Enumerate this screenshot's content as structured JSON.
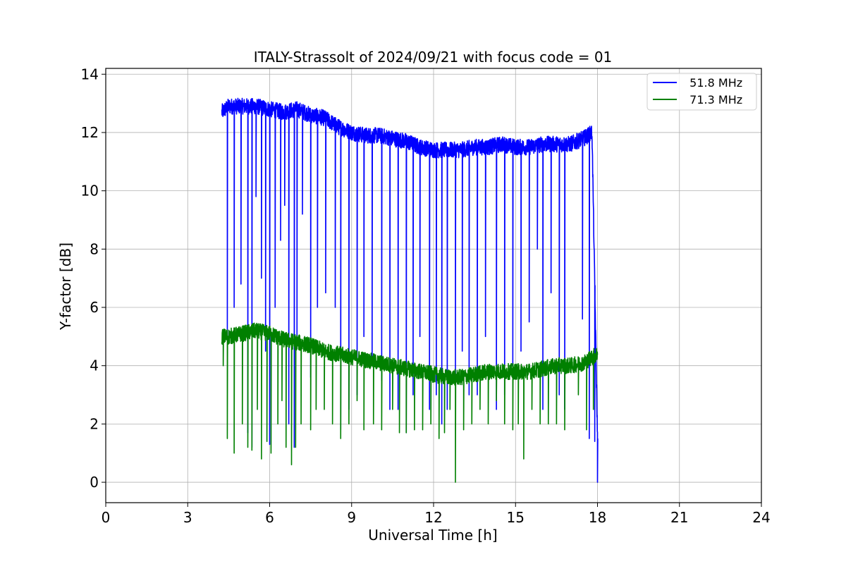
{
  "chart_data": {
    "type": "line",
    "title": "ITALY-Strassolt of 2024/09/21 with focus code = 01",
    "xlabel": "Universal Time [h]",
    "ylabel": "Y-factor [dB]",
    "xlim": [
      0,
      24
    ],
    "ylim": [
      -0.7,
      14.2
    ],
    "xticks": [
      0,
      3,
      6,
      9,
      12,
      15,
      18,
      21,
      24
    ],
    "xtick_labels": [
      "0",
      "3",
      "6",
      "9",
      "12",
      "15",
      "18",
      "21",
      "24"
    ],
    "yticks": [
      0,
      2,
      4,
      6,
      8,
      10,
      12,
      14
    ],
    "ytick_labels": [
      "0",
      "2",
      "4",
      "6",
      "8",
      "10",
      "12",
      "14"
    ],
    "grid": true,
    "legend_position": "top-right",
    "series": [
      {
        "name": "  51.8 MHz",
        "color": "#0000ff",
        "x": [
          4.25,
          4.5,
          5.0,
          5.5,
          6.0,
          6.5,
          7.0,
          7.5,
          8.0,
          8.5,
          9.0,
          9.5,
          10.0,
          10.5,
          11.0,
          11.5,
          12.0,
          12.5,
          13.0,
          13.5,
          14.0,
          14.5,
          15.0,
          15.5,
          16.0,
          16.5,
          17.0,
          17.5,
          17.8,
          18.0
        ],
        "y": [
          12.7,
          12.9,
          12.9,
          12.9,
          12.8,
          12.7,
          12.8,
          12.6,
          12.5,
          12.2,
          12.0,
          11.9,
          11.9,
          11.8,
          11.7,
          11.5,
          11.4,
          11.4,
          11.4,
          11.5,
          11.5,
          11.6,
          11.5,
          11.5,
          11.6,
          11.6,
          11.6,
          11.8,
          12.0,
          1.5
        ],
        "dips": [
          {
            "x": 4.45,
            "y": 5.0
          },
          {
            "x": 4.7,
            "y": 6.0
          },
          {
            "x": 4.95,
            "y": 6.8
          },
          {
            "x": 5.2,
            "y": 1.7
          },
          {
            "x": 5.35,
            "y": 1.2
          },
          {
            "x": 5.5,
            "y": 9.8
          },
          {
            "x": 5.7,
            "y": 7.0
          },
          {
            "x": 5.85,
            "y": 4.5
          },
          {
            "x": 6.0,
            "y": 1.3
          },
          {
            "x": 6.2,
            "y": 6.0
          },
          {
            "x": 6.4,
            "y": 8.3
          },
          {
            "x": 6.55,
            "y": 9.5
          },
          {
            "x": 6.7,
            "y": 2.0
          },
          {
            "x": 6.9,
            "y": 1.2
          },
          {
            "x": 7.0,
            "y": 5.0
          },
          {
            "x": 7.2,
            "y": 9.2
          },
          {
            "x": 7.5,
            "y": 3.6
          },
          {
            "x": 7.75,
            "y": 6.0
          },
          {
            "x": 8.05,
            "y": 6.5
          },
          {
            "x": 8.4,
            "y": 6.0
          },
          {
            "x": 8.6,
            "y": 1.8
          },
          {
            "x": 8.9,
            "y": 2.5
          },
          {
            "x": 9.2,
            "y": 3.0
          },
          {
            "x": 9.45,
            "y": 5.0
          },
          {
            "x": 9.75,
            "y": 4.0
          },
          {
            "x": 10.1,
            "y": 3.5
          },
          {
            "x": 10.4,
            "y": 2.5
          },
          {
            "x": 10.7,
            "y": 2.5
          },
          {
            "x": 11.0,
            "y": 1.7
          },
          {
            "x": 11.25,
            "y": 3.0
          },
          {
            "x": 11.5,
            "y": 5.0
          },
          {
            "x": 11.85,
            "y": 2.5
          },
          {
            "x": 12.1,
            "y": 3.0
          },
          {
            "x": 12.3,
            "y": 2.0
          },
          {
            "x": 12.5,
            "y": 2.5
          },
          {
            "x": 12.8,
            "y": 3.5
          },
          {
            "x": 13.05,
            "y": 4.5
          },
          {
            "x": 13.3,
            "y": 3.0
          },
          {
            "x": 13.6,
            "y": 3.0
          },
          {
            "x": 13.9,
            "y": 5.0
          },
          {
            "x": 14.3,
            "y": 2.5
          },
          {
            "x": 14.6,
            "y": 3.0
          },
          {
            "x": 14.9,
            "y": 4.0
          },
          {
            "x": 15.2,
            "y": 4.5
          },
          {
            "x": 15.5,
            "y": 5.5
          },
          {
            "x": 15.8,
            "y": 8.0
          },
          {
            "x": 16.0,
            "y": 2.5
          },
          {
            "x": 16.3,
            "y": 6.5
          },
          {
            "x": 16.6,
            "y": 3.0
          },
          {
            "x": 16.8,
            "y": 2.5
          },
          {
            "x": 17.45,
            "y": 5.6
          },
          {
            "x": 17.7,
            "y": 1.5
          },
          {
            "x": 17.9,
            "y": 1.4
          },
          {
            "x": 18.0,
            "y": 0.0
          }
        ]
      },
      {
        "name": "  71.3 MHz",
        "color": "#008000",
        "x": [
          4.25,
          4.5,
          5.0,
          5.5,
          6.0,
          6.5,
          7.0,
          7.5,
          8.0,
          8.5,
          9.0,
          9.5,
          10.0,
          10.5,
          11.0,
          11.5,
          12.0,
          12.5,
          13.0,
          13.5,
          14.0,
          14.5,
          15.0,
          15.5,
          16.0,
          16.5,
          17.0,
          17.5,
          17.8,
          18.0
        ],
        "y": [
          5.0,
          5.0,
          5.1,
          5.2,
          5.1,
          4.9,
          4.8,
          4.7,
          4.5,
          4.4,
          4.3,
          4.2,
          4.1,
          4.0,
          3.9,
          3.8,
          3.7,
          3.6,
          3.6,
          3.7,
          3.8,
          3.8,
          3.8,
          3.8,
          3.9,
          4.0,
          4.0,
          4.1,
          4.3,
          4.4
        ],
        "dips": [
          {
            "x": 4.3,
            "y": 4.0
          },
          {
            "x": 4.45,
            "y": 1.5
          },
          {
            "x": 4.7,
            "y": 1.0
          },
          {
            "x": 5.0,
            "y": 2.0
          },
          {
            "x": 5.2,
            "y": 1.2
          },
          {
            "x": 5.35,
            "y": 1.1
          },
          {
            "x": 5.55,
            "y": 2.5
          },
          {
            "x": 5.7,
            "y": 0.8
          },
          {
            "x": 5.9,
            "y": 1.4
          },
          {
            "x": 6.05,
            "y": 1.0
          },
          {
            "x": 6.3,
            "y": 2.0
          },
          {
            "x": 6.45,
            "y": 2.8
          },
          {
            "x": 6.6,
            "y": 1.2
          },
          {
            "x": 6.8,
            "y": 0.6
          },
          {
            "x": 6.95,
            "y": 1.2
          },
          {
            "x": 7.15,
            "y": 2.0
          },
          {
            "x": 7.5,
            "y": 1.8
          },
          {
            "x": 7.7,
            "y": 2.5
          },
          {
            "x": 8.0,
            "y": 2.5
          },
          {
            "x": 8.3,
            "y": 2.0
          },
          {
            "x": 8.6,
            "y": 1.5
          },
          {
            "x": 8.9,
            "y": 2.0
          },
          {
            "x": 9.2,
            "y": 2.8
          },
          {
            "x": 9.45,
            "y": 1.8
          },
          {
            "x": 9.8,
            "y": 2.0
          },
          {
            "x": 10.1,
            "y": 1.8
          },
          {
            "x": 10.5,
            "y": 2.5
          },
          {
            "x": 10.75,
            "y": 1.7
          },
          {
            "x": 11.0,
            "y": 1.7
          },
          {
            "x": 11.3,
            "y": 1.8
          },
          {
            "x": 11.6,
            "y": 1.8
          },
          {
            "x": 11.9,
            "y": 2.0
          },
          {
            "x": 12.2,
            "y": 1.5
          },
          {
            "x": 12.4,
            "y": 1.7
          },
          {
            "x": 12.6,
            "y": 2.5
          },
          {
            "x": 12.8,
            "y": 0.0
          },
          {
            "x": 13.1,
            "y": 1.8
          },
          {
            "x": 13.4,
            "y": 2.0
          },
          {
            "x": 13.7,
            "y": 2.5
          },
          {
            "x": 14.0,
            "y": 2.0
          },
          {
            "x": 14.3,
            "y": 2.8
          },
          {
            "x": 14.6,
            "y": 2.0
          },
          {
            "x": 14.9,
            "y": 1.8
          },
          {
            "x": 15.1,
            "y": 2.0
          },
          {
            "x": 15.3,
            "y": 0.8
          },
          {
            "x": 15.6,
            "y": 2.5
          },
          {
            "x": 15.9,
            "y": 2.0
          },
          {
            "x": 16.2,
            "y": 2.0
          },
          {
            "x": 16.5,
            "y": 2.0
          },
          {
            "x": 16.8,
            "y": 1.8
          },
          {
            "x": 17.3,
            "y": 3.0
          },
          {
            "x": 17.6,
            "y": 1.8
          },
          {
            "x": 17.85,
            "y": 2.5
          }
        ]
      }
    ]
  }
}
